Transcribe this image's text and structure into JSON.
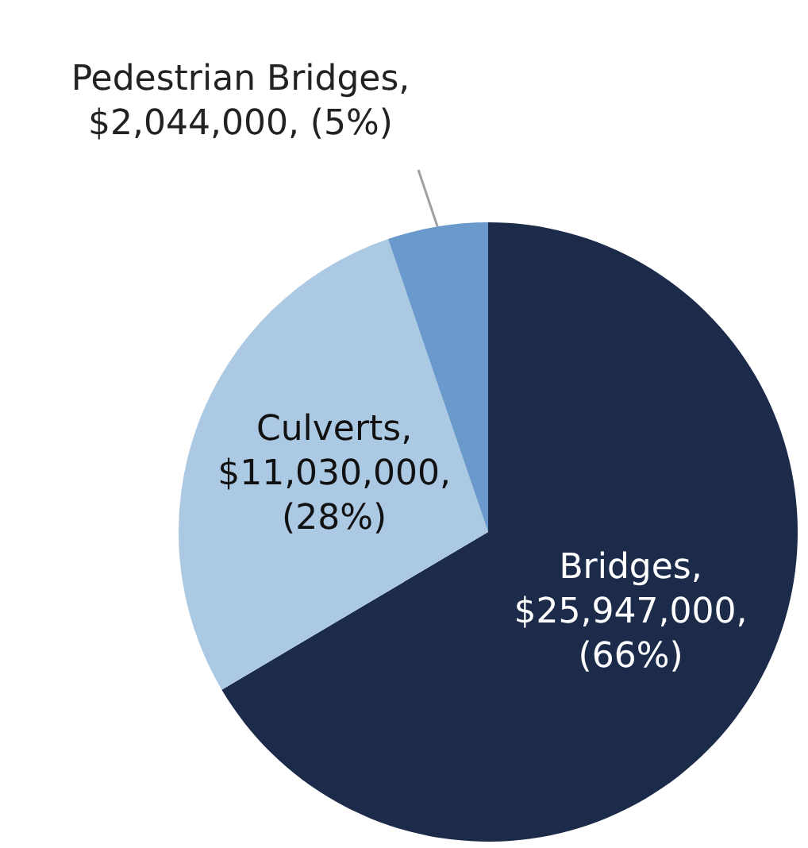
{
  "chart_data": {
    "type": "pie",
    "categories": [
      "Bridges",
      "Culverts",
      "Pedestrian Bridges"
    ],
    "values": [
      25947000,
      11030000,
      2044000
    ],
    "colors": [
      "#1c2b4a",
      "#abc9e3",
      "#6a9acb"
    ],
    "value_labels": [
      ", $25,947,000, (66%)",
      ", $11,030,000, (28%)",
      ", $2,044,000, (5%)"
    ],
    "legend": false
  }
}
